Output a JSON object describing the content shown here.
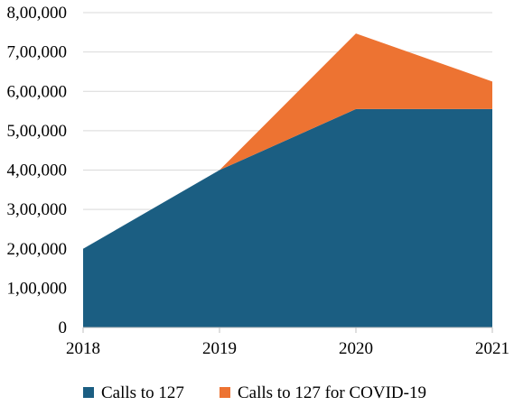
{
  "chart_data": {
    "type": "area",
    "stacked": true,
    "title": "",
    "xlabel": "",
    "ylabel": "",
    "x": [
      "2018",
      "2019",
      "2020",
      "2021"
    ],
    "series": [
      {
        "name": "Calls to  127",
        "values": [
          200000,
          400000,
          555000,
          555000
        ],
        "color": "#1b5e82"
      },
      {
        "name": "Calls to 127 for COVID-19",
        "values": [
          0,
          0,
          192000,
          70000
        ],
        "color": "#ed7332"
      }
    ],
    "ylim": [
      0,
      800000
    ],
    "y_ticks": [
      {
        "value": 0,
        "label": "0"
      },
      {
        "value": 100000,
        "label": "1,00,000"
      },
      {
        "value": 200000,
        "label": "2,00,000"
      },
      {
        "value": 300000,
        "label": "3,00,000"
      },
      {
        "value": 400000,
        "label": "4,00,000"
      },
      {
        "value": 500000,
        "label": "5,00,000"
      },
      {
        "value": 600000,
        "label": "6,00,000"
      },
      {
        "value": 700000,
        "label": "7,00,000"
      },
      {
        "value": 800000,
        "label": "8,00,000"
      }
    ],
    "grid": true,
    "legend_position": "bottom"
  }
}
